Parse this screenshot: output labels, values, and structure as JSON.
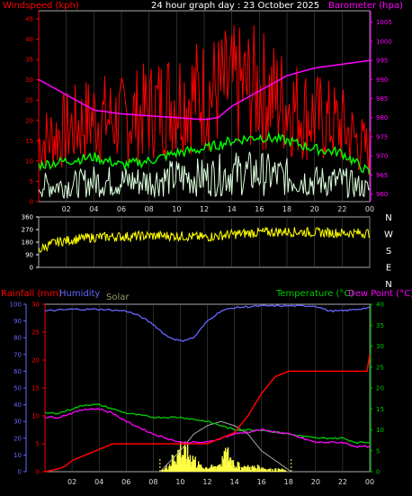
{
  "colors": {
    "wind_avg": "#00ff00",
    "wind_gust": "#ff0000",
    "wind_speed": "#ddffdd",
    "barometer": "#ff00ff",
    "direction": "#ffff00",
    "rainfall": "#ff0000",
    "humidity": "#6666ff",
    "solar": "#ffff44",
    "temperature": "#00cc00",
    "dewpoint": "#ff00ff",
    "frame": "#aaaaaa",
    "grid": "#555555"
  },
  "chart_data": [
    {
      "type": "line",
      "title": "24 hour graph day : 23 October 2025",
      "left_axis_label": "Windspeed (kph)",
      "right_axis_label": "Barometer (hpa)",
      "x_ticks": [
        "02",
        "04",
        "06",
        "08",
        "10",
        "12",
        "14",
        "16",
        "18",
        "20",
        "22",
        "00"
      ],
      "left_ticks": [
        "0",
        "5",
        "10",
        "15",
        "20",
        "25",
        "30",
        "35",
        "40",
        "45"
      ],
      "right_ticks": [
        "960",
        "965",
        "970",
        "975",
        "980",
        "985",
        "990",
        "995",
        "1000",
        "1005"
      ],
      "ylim_left": [
        0,
        47
      ],
      "ylim_right": [
        958,
        1008
      ],
      "xlim": [
        0,
        24
      ],
      "series": [
        {
          "id": "barometer",
          "axis": "right",
          "x": [
            0,
            2,
            4,
            6,
            8,
            10,
            12,
            13,
            14,
            16,
            18,
            20,
            22,
            24
          ],
          "values": [
            990,
            986,
            982,
            981,
            980.5,
            980,
            979.5,
            980,
            983,
            987,
            991,
            993,
            994,
            995
          ]
        },
        {
          "id": "wind_avg",
          "axis": "left",
          "x": [
            0,
            2,
            4,
            6,
            8,
            10,
            12,
            14,
            16,
            18,
            20,
            22,
            24
          ],
          "values": [
            9,
            10,
            11,
            9,
            10,
            12,
            13,
            15,
            16,
            15,
            13,
            12,
            7
          ]
        },
        {
          "id": "wind_gust",
          "axis": "left",
          "x": [
            0,
            2,
            4,
            6,
            8,
            10,
            12,
            14,
            16,
            18,
            20,
            22,
            24
          ],
          "values": [
            18,
            22,
            26,
            25,
            28,
            32,
            33,
            35,
            35,
            30,
            26,
            23,
            15
          ]
        },
        {
          "id": "wind_speed",
          "axis": "left",
          "x": [
            0,
            2,
            4,
            6,
            8,
            10,
            12,
            14,
            16,
            18,
            20,
            22,
            24
          ],
          "values": [
            4,
            4,
            5,
            5,
            5,
            6,
            6,
            7,
            7,
            6,
            5,
            5,
            3
          ]
        }
      ]
    },
    {
      "type": "scatter",
      "title": "",
      "series_name": "Wind direction",
      "left_ticks": [
        "0",
        "90",
        "180",
        "270",
        "360"
      ],
      "compass_labels": [
        "N",
        "W",
        "S",
        "E",
        "N"
      ],
      "ylim": [
        0,
        360
      ],
      "xlim": [
        0,
        24
      ],
      "x": [
        0,
        0.5,
        1,
        1.5,
        2,
        3,
        4,
        6,
        8,
        10,
        12,
        14,
        16,
        18,
        20,
        22,
        24
      ],
      "values": [
        120,
        150,
        170,
        185,
        190,
        205,
        215,
        220,
        225,
        225,
        215,
        235,
        250,
        255,
        250,
        245,
        245
      ]
    },
    {
      "type": "line",
      "title": "",
      "legend": [
        "Rainfall (mm)",
        "Humidity",
        "Solar",
        "Temperature (°C)",
        "Dew Point (°C)"
      ],
      "x_ticks": [
        "02",
        "04",
        "06",
        "08",
        "10",
        "12",
        "14",
        "16",
        "18",
        "20",
        "22",
        "00"
      ],
      "left_ticks_humidity": [
        "0",
        "10",
        "20",
        "30",
        "40",
        "50",
        "60",
        "70",
        "80",
        "90",
        "100"
      ],
      "left_ticks_rain": [
        "0",
        "5",
        "10",
        "15",
        "20",
        "25",
        "30"
      ],
      "right_ticks_temp": [
        "0",
        "5",
        "10",
        "15",
        "20",
        "25",
        "30",
        "35",
        "40"
      ],
      "xlim": [
        0,
        24
      ],
      "series": [
        {
          "id": "humidity",
          "axis": "hum",
          "x": [
            0,
            2,
            4,
            6,
            7,
            8,
            9,
            10,
            11,
            12,
            13,
            14,
            16,
            18,
            20,
            21,
            22,
            24
          ],
          "values": [
            96,
            97,
            97,
            96,
            93,
            88,
            81,
            78,
            80,
            90,
            96,
            98,
            99,
            99,
            99,
            96,
            96,
            98
          ]
        },
        {
          "id": "temperature",
          "axis": "temp",
          "x": [
            0,
            1,
            2,
            3,
            4,
            5,
            6,
            8,
            10,
            12,
            14,
            16,
            18,
            20,
            22,
            23,
            24
          ],
          "values": [
            14,
            14,
            15,
            16,
            16,
            15,
            14,
            13,
            13,
            12,
            10,
            10,
            9,
            8,
            8,
            7,
            7
          ]
        },
        {
          "id": "dewpoint",
          "axis": "temp",
          "x": [
            0,
            1,
            2,
            3,
            4,
            5,
            6,
            8,
            10,
            12,
            14,
            16,
            18,
            20,
            22,
            23,
            24
          ],
          "values": [
            13,
            13,
            14,
            15,
            15,
            14,
            12,
            9,
            7,
            7,
            9,
            10,
            9,
            7,
            7,
            6,
            6
          ]
        },
        {
          "id": "rainfall",
          "axis": "rain",
          "x": [
            0,
            1,
            1.5,
            2,
            3,
            5,
            8,
            10,
            12,
            14,
            15,
            16,
            17,
            18,
            20,
            22,
            23.8,
            24
          ],
          "values": [
            0,
            0.5,
            1,
            2,
            3,
            5,
            5,
            5,
            5,
            7,
            10,
            14,
            17,
            18,
            18,
            18,
            18,
            21
          ]
        },
        {
          "id": "solar_curve",
          "axis": "temp",
          "x": [
            8.5,
            10,
            11,
            12,
            13,
            14,
            15,
            16,
            18.2
          ],
          "values": [
            0,
            5,
            9,
            11,
            12,
            11,
            9,
            5,
            0
          ]
        },
        {
          "id": "solar",
          "axis": "temp",
          "x": [
            8.5,
            9,
            9.5,
            10,
            10.5,
            11,
            11.5,
            12,
            12.5,
            13,
            13.5,
            14,
            14.5,
            15,
            15.5,
            16,
            16.5,
            17,
            17.5,
            18
          ],
          "values": [
            0,
            1,
            3,
            5,
            4,
            3,
            1,
            1,
            1,
            2,
            4,
            2,
            1,
            1,
            1,
            1,
            0.5,
            0.5,
            0.5,
            0
          ]
        }
      ]
    }
  ]
}
